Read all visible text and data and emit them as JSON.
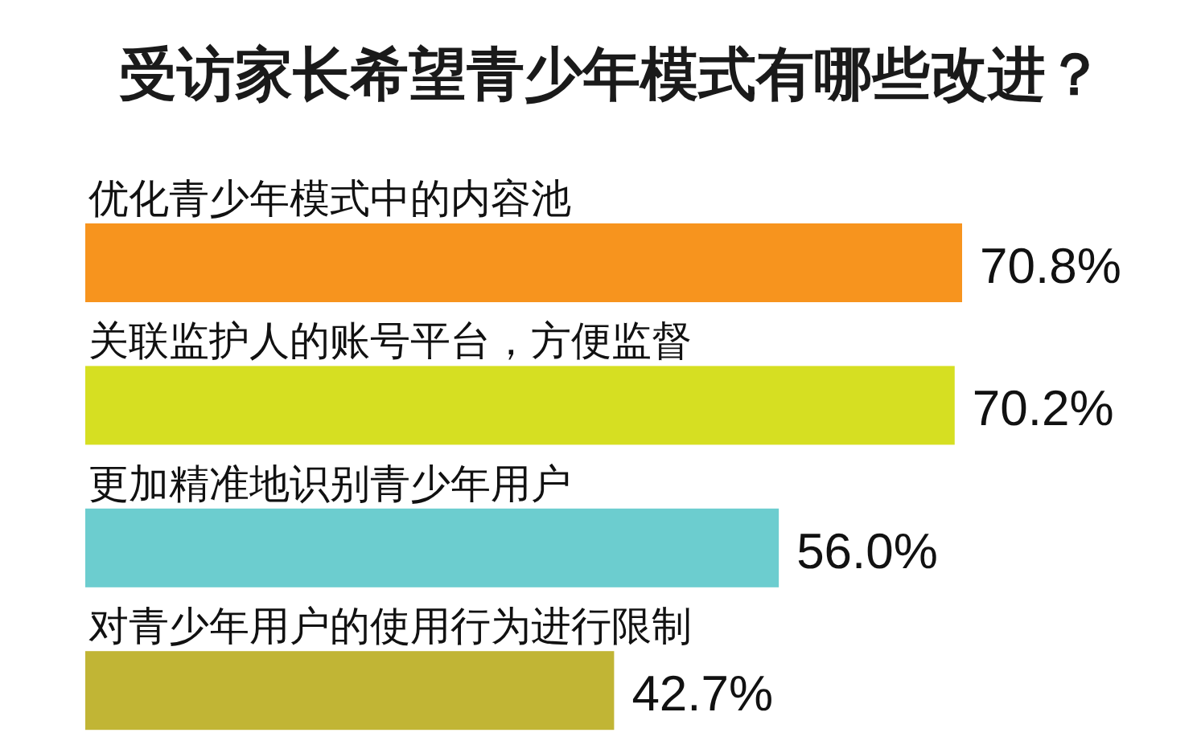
{
  "chart_data": {
    "type": "bar",
    "orientation": "horizontal",
    "title": "受访家长希望青少年模式有哪些改进？",
    "categories": [
      "优化青少年模式中的内容池",
      "关联监护人的账号平台，方便监督",
      "更加精准地识别青少年用户",
      "对青少年用户的使用行为进行限制"
    ],
    "values": [
      70.8,
      70.2,
      56.0,
      42.7
    ],
    "colors": [
      "#f7941e",
      "#d6df22",
      "#6ccdcf",
      "#c1b535"
    ],
    "value_labels": [
      "70.8%",
      "70.2%",
      "56.0%",
      "42.7%"
    ]
  }
}
